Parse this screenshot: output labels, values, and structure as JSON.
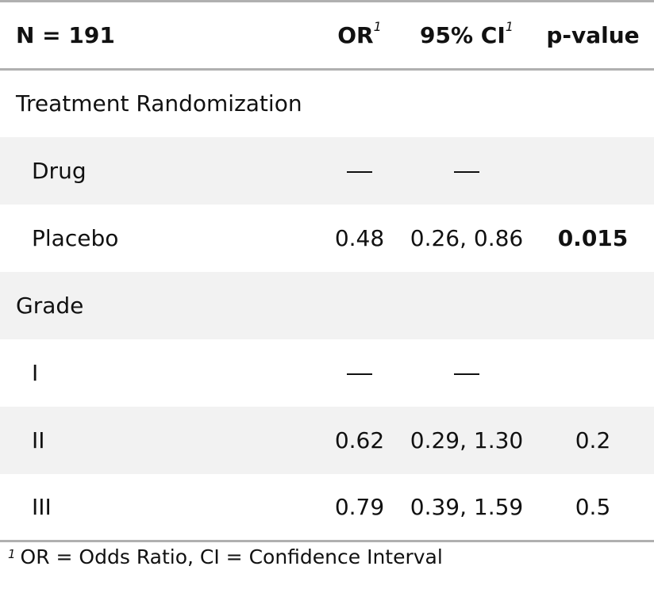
{
  "header": {
    "n_label": "N = 191",
    "or_label": "OR",
    "ci_label": "95% CI",
    "p_label": "p-value",
    "footnote_marker": "1"
  },
  "groups": [
    {
      "label": "Treatment Randomization",
      "levels": [
        {
          "label": "Drug",
          "or": "—",
          "ci": "—",
          "p": ""
        },
        {
          "label": "Placebo",
          "or": "0.48",
          "ci": "0.26, 0.86",
          "p": "0.015"
        }
      ]
    },
    {
      "label": "Grade",
      "levels": [
        {
          "label": "I",
          "or": "—",
          "ci": "—",
          "p": ""
        },
        {
          "label": "II",
          "or": "0.62",
          "ci": "0.29, 1.30",
          "p": "0.2"
        },
        {
          "label": "III",
          "or": "0.79",
          "ci": "0.39, 1.59",
          "p": "0.5"
        }
      ]
    }
  ],
  "footnote": {
    "marker": "1",
    "text": "OR = Odds Ratio, CI = Confidence Interval"
  }
}
